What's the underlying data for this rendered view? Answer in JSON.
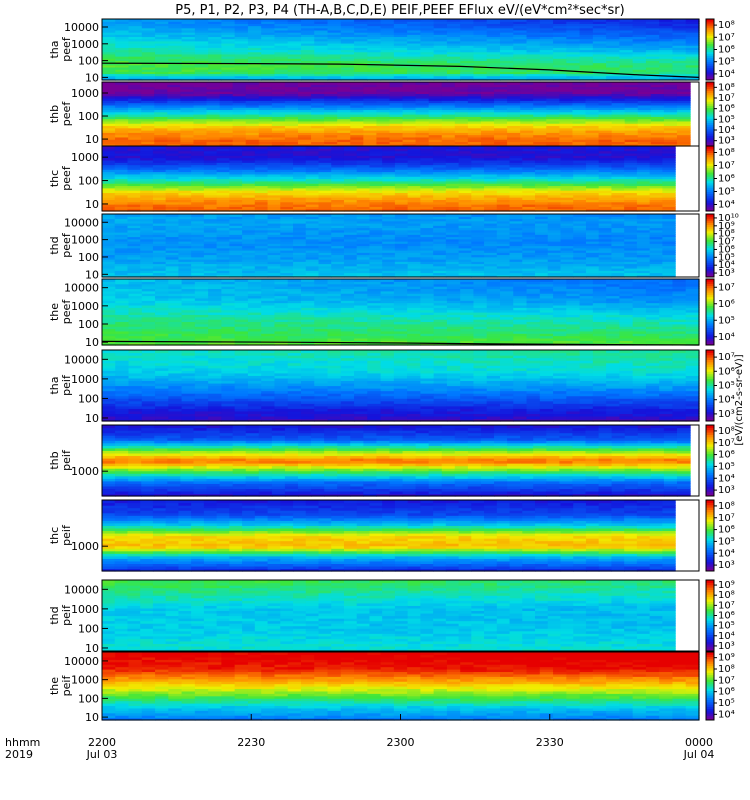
{
  "title": "P5, P1, P2, P3, P4 (TH-A,B,C,D,E) PEIF,PEEF EFlux eV/(eV*cm²*sec*sr)",
  "colorbar_units": "[eV/(cm2-s-sr-eV)]",
  "x_axis": {
    "row_label_top": "hhmm",
    "row_label_bottom": "2019",
    "ticks": [
      {
        "top": "2200",
        "bottom": "Jul 03",
        "frac": 0
      },
      {
        "top": "2230",
        "bottom": "",
        "frac": 0.25
      },
      {
        "top": "2300",
        "bottom": "",
        "frac": 0.5
      },
      {
        "top": "2330",
        "bottom": "",
        "frac": 0.75
      },
      {
        "top": "0000",
        "bottom": "Jul 04",
        "frac": 1
      }
    ]
  },
  "chart_data": {
    "type": "heatmap",
    "x_range": [
      "2019-07-03 22:00",
      "2019-07-04 00:00"
    ],
    "y_scale": "log",
    "panels": [
      {
        "probe": "tha",
        "species": "peef",
        "ylabel_top": "tha",
        "ylabel_bottom": "peef",
        "yticks": [
          "10",
          "100",
          "1000",
          "10000"
        ],
        "ylim": [
          7,
          30000
        ],
        "cb_ticks": [
          "10⁴",
          "10⁵",
          "10⁶",
          "10⁷",
          "10⁸"
        ],
        "data_end": 1.0,
        "has_line": true,
        "line": [
          [
            0,
            70
          ],
          [
            0.25,
            66
          ],
          [
            0.4,
            62
          ],
          [
            0.6,
            45
          ],
          [
            0.75,
            28
          ],
          [
            0.8,
            22
          ],
          [
            0.9,
            14
          ],
          [
            1.0,
            10
          ]
        ],
        "profile": [
          [
            1,
            5.2
          ],
          [
            1.3,
            6.2
          ],
          [
            1.8,
            6.3
          ],
          [
            2.3,
            6.0
          ],
          [
            3.0,
            5.6
          ],
          [
            3.4,
            5.4
          ],
          [
            4.3,
            5.0
          ]
        ],
        "drift": -1.3
      },
      {
        "probe": "thb",
        "species": "peef",
        "ylabel_top": "thb",
        "ylabel_bottom": "peef",
        "yticks": [
          "10",
          "100",
          "1000"
        ],
        "ylim": [
          5,
          3000
        ],
        "cb_ticks": [
          "10³",
          "10⁴",
          "10⁵",
          "10⁶",
          "10⁷",
          "10⁸"
        ],
        "data_end": 0.985,
        "has_line": false,
        "profile": [
          [
            0.7,
            8.0
          ],
          [
            1.0,
            8.0
          ],
          [
            1.5,
            7.4
          ],
          [
            2.0,
            6.0
          ],
          [
            2.6,
            4.2
          ],
          [
            3.0,
            3.1
          ],
          [
            3.5,
            3.0
          ]
        ],
        "drift": 0
      },
      {
        "probe": "thc",
        "species": "peef",
        "ylabel_top": "thc",
        "ylabel_bottom": "peef",
        "yticks": [
          "10",
          "100",
          "1000"
        ],
        "ylim": [
          5,
          3000
        ],
        "cb_ticks": [
          "10⁴",
          "10⁵",
          "10⁶",
          "10⁷",
          "10⁸"
        ],
        "data_end": 0.96,
        "has_line": false,
        "profile": [
          [
            0.7,
            8.0
          ],
          [
            1.0,
            7.9
          ],
          [
            1.5,
            7.2
          ],
          [
            2.0,
            5.8
          ],
          [
            2.6,
            4.3
          ],
          [
            3.0,
            3.6
          ],
          [
            3.5,
            3.6
          ]
        ],
        "drift": 0
      },
      {
        "probe": "thd",
        "species": "peef",
        "ylabel_top": "thd",
        "ylabel_bottom": "peef",
        "yticks": [
          "10",
          "100",
          "1000",
          "10000"
        ],
        "ylim": [
          7,
          30000
        ],
        "cb_ticks": [
          "10³",
          "10⁴",
          "10⁵",
          "10⁶",
          "10⁷",
          "10⁸",
          "10⁹",
          "10¹⁰"
        ],
        "data_end": 0.96,
        "has_line": false,
        "profile": [
          [
            1,
            5.3
          ],
          [
            2,
            5.0
          ],
          [
            3,
            4.9
          ],
          [
            4,
            5.1
          ],
          [
            4.5,
            5.0
          ]
        ],
        "drift": -0.2
      },
      {
        "probe": "the",
        "species": "peef",
        "ylabel_top": "the",
        "ylabel_bottom": "peef",
        "yticks": [
          "10",
          "100",
          "1000",
          "10000"
        ],
        "ylim": [
          7,
          30000
        ],
        "cb_ticks": [
          "10⁴",
          "10⁵",
          "10⁶",
          "10⁷"
        ],
        "data_end": 1.0,
        "has_line": true,
        "line": [
          [
            0,
            11
          ],
          [
            0.3,
            10
          ],
          [
            0.5,
            9
          ],
          [
            0.65,
            8
          ],
          [
            1.0,
            7
          ]
        ],
        "profile": [
          [
            0.8,
            6.4
          ],
          [
            1.3,
            6.2
          ],
          [
            2,
            6.0
          ],
          [
            2.8,
            5.7
          ],
          [
            3.3,
            5.4
          ],
          [
            4.3,
            5.3
          ]
        ],
        "drift": -0.8
      },
      {
        "probe": "tha",
        "species": "peif",
        "ylabel_top": "tha",
        "ylabel_bottom": "peif",
        "yticks": [
          "10",
          "100",
          "1000",
          "10000"
        ],
        "ylim": [
          7,
          30000
        ],
        "cb_ticks": [
          "10³",
          "10⁴",
          "10⁵",
          "10⁶",
          "10⁷"
        ],
        "data_end": 1.0,
        "has_line": false,
        "profile": [
          [
            0.8,
            3.4
          ],
          [
            1.4,
            3.7
          ],
          [
            2.0,
            4.3
          ],
          [
            2.8,
            5.0
          ],
          [
            3.4,
            5.4
          ],
          [
            4.3,
            5.6
          ]
        ],
        "drift": 0.3
      },
      {
        "probe": "thb",
        "species": "peif",
        "ylabel_top": "thb",
        "ylabel_bottom": "peif",
        "yticks": [
          "1000"
        ],
        "ylim": [
          200,
          20000
        ],
        "cb_ticks": [
          "10³",
          "10⁴",
          "10⁵",
          "10⁶",
          "10⁷",
          "10⁸"
        ],
        "data_end": 0.985,
        "has_line": false,
        "profile": [
          [
            2.3,
            3.5
          ],
          [
            2.7,
            4.6
          ],
          [
            3.0,
            6.2
          ],
          [
            3.3,
            8.0
          ],
          [
            3.6,
            6.4
          ],
          [
            3.9,
            4.4
          ],
          [
            4.3,
            3.6
          ]
        ],
        "drift": 0
      },
      {
        "probe": "thc",
        "species": "peif",
        "ylabel_top": "thc",
        "ylabel_bottom": "peif",
        "yticks": [
          "1000"
        ],
        "ylim": [
          200,
          20000
        ],
        "cb_ticks": [
          "10³",
          "10⁴",
          "10⁵",
          "10⁶",
          "10⁷",
          "10⁸"
        ],
        "data_end": 0.96,
        "has_line": false,
        "profile": [
          [
            2.3,
            3.8
          ],
          [
            2.7,
            5.2
          ],
          [
            3.0,
            7.4
          ],
          [
            3.3,
            7.2
          ],
          [
            3.6,
            5.4
          ],
          [
            3.9,
            4.2
          ],
          [
            4.3,
            3.7
          ]
        ],
        "drift": 0
      },
      {
        "probe": "thd",
        "species": "peif",
        "ylabel_top": "thd",
        "ylabel_bottom": "peif",
        "yticks": [
          "10",
          "100",
          "1000",
          "10000"
        ],
        "ylim": [
          7,
          30000
        ],
        "cb_ticks": [
          "10³",
          "10⁴",
          "10⁵",
          "10⁶",
          "10⁷",
          "10⁸",
          "10⁹"
        ],
        "data_end": 0.96,
        "has_line": false,
        "profile": [
          [
            1,
            5.6
          ],
          [
            2,
            5.4
          ],
          [
            3,
            5.4
          ],
          [
            3.8,
            5.9
          ],
          [
            4.5,
            6.3
          ]
        ],
        "drift": -0.3
      },
      {
        "probe": "the",
        "species": "peif",
        "ylabel_top": "the",
        "ylabel_bottom": "peif",
        "yticks": [
          "10",
          "100",
          "1000",
          "10000"
        ],
        "ylim": [
          7,
          30000
        ],
        "cb_ticks": [
          "10⁴",
          "10⁵",
          "10⁶",
          "10⁷",
          "10⁸",
          "10⁹"
        ],
        "data_end": 1.0,
        "has_line": false,
        "profile": [
          [
            0.8,
            4.6
          ],
          [
            1.5,
            5.3
          ],
          [
            2.2,
            6.4
          ],
          [
            3.0,
            7.6
          ],
          [
            3.6,
            8.4
          ],
          [
            4.3,
            8.6
          ]
        ],
        "drift": 0.2
      }
    ]
  }
}
